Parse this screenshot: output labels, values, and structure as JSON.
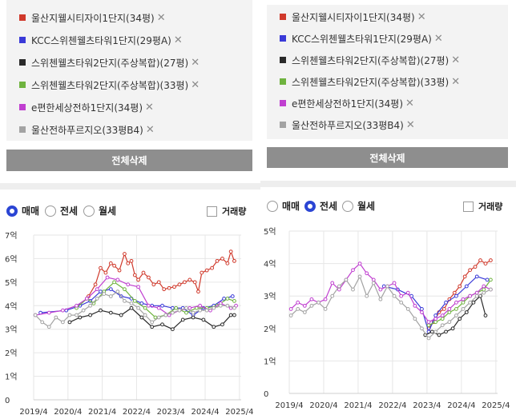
{
  "legend": [
    {
      "label": "울산지웰시티자이1단지(34평)",
      "color": "#d0392b"
    },
    {
      "label": "KCC스위첸웰츠타워1단지(29평A)",
      "color": "#3a3ad8"
    },
    {
      "label": "스위첸웰츠타워2단지(주상복합)(27평)",
      "color": "#2a2a2a"
    },
    {
      "label": "스위첸웰츠타워2단지(주상복합)(33평)",
      "color": "#6fb33f"
    },
    {
      "label": "e편한세상전하1단지(34평)",
      "color": "#c03fd0"
    },
    {
      "label": "울산전하푸르지오(33평B4)",
      "color": "#a3a3a3"
    }
  ],
  "remove_glyph": "✕",
  "delete_all_label": "전체삭제",
  "options": [
    "매매",
    "전세",
    "월세"
  ],
  "checkbox_label": "거래량",
  "panels": [
    {
      "selected_option": 0
    },
    {
      "selected_option": 1
    }
  ],
  "chart_data": [
    {
      "type": "line",
      "y_unit": "억",
      "yticks": [
        "0",
        "1억",
        "2억",
        "3억",
        "4억",
        "5억",
        "6억",
        "7억"
      ],
      "ylim": [
        0,
        7
      ],
      "xticks": [
        "2019/4",
        "2020/4",
        "2021/4",
        "2022/4",
        "2023/4",
        "2024/4",
        "2025/4"
      ],
      "xlim": [
        2019.25,
        2025.3
      ],
      "series": [
        {
          "name": "울산지웰시티자이1단지(34평)",
          "color": "#d0392b",
          "x": [
            2020.85,
            2021.05,
            2021.2,
            2021.35,
            2021.5,
            2021.6,
            2021.75,
            2021.9,
            2022.0,
            2022.1,
            2022.2,
            2022.3,
            2022.45,
            2022.6,
            2022.75,
            2022.9,
            2023.05,
            2023.2,
            2023.35,
            2023.5,
            2023.65,
            2023.8,
            2023.95,
            2024.05,
            2024.15,
            2024.3,
            2024.45,
            2024.6,
            2024.75,
            2024.9,
            2025.0,
            2025.1
          ],
          "y": [
            4.4,
            4.9,
            5.6,
            5.4,
            5.8,
            5.7,
            5.5,
            6.2,
            5.8,
            5.9,
            5.3,
            5.1,
            5.4,
            5.2,
            4.9,
            5.0,
            4.7,
            4.75,
            4.8,
            4.9,
            5.0,
            5.1,
            5.0,
            4.6,
            5.4,
            5.5,
            5.6,
            5.9,
            6.0,
            5.8,
            6.3,
            5.9
          ]
        },
        {
          "name": "KCC스위첸웰츠타워1단지(29평A)",
          "color": "#3a3ad8",
          "x": [
            2019.45,
            2020.2,
            2020.6,
            2020.9,
            2021.2,
            2021.5,
            2021.8,
            2022.1,
            2022.4,
            2022.7,
            2023.0,
            2023.3,
            2023.6,
            2023.9,
            2024.2,
            2024.5,
            2024.8,
            2025.05
          ],
          "y": [
            3.7,
            3.8,
            4.0,
            4.2,
            4.6,
            4.7,
            4.4,
            4.3,
            4.1,
            4.0,
            4.0,
            3.9,
            3.9,
            3.6,
            3.9,
            4.0,
            4.3,
            4.4
          ]
        },
        {
          "name": "스위첸웰츠타워2단지(주상복합)(27평)",
          "color": "#2a2a2a",
          "x": [
            2020.3,
            2020.6,
            2020.9,
            2021.2,
            2021.5,
            2021.8,
            2022.1,
            2022.4,
            2022.7,
            2023.0,
            2023.3,
            2023.6,
            2023.9,
            2024.2,
            2024.5,
            2024.75,
            2025.0,
            2025.1
          ],
          "y": [
            3.3,
            3.5,
            3.6,
            3.8,
            3.7,
            3.6,
            3.9,
            3.5,
            3.1,
            3.2,
            3.0,
            3.4,
            3.5,
            3.4,
            3.1,
            3.2,
            3.6,
            3.6
          ]
        },
        {
          "name": "스위첸웰츠타워2단지(주상복합)(33평)",
          "color": "#6fb33f",
          "x": [
            2020.5,
            2020.8,
            2021.0,
            2021.3,
            2021.6,
            2021.9,
            2022.2,
            2022.5,
            2022.8,
            2023.1,
            2023.4,
            2023.7,
            2024.0,
            2024.3,
            2024.6,
            2024.9,
            2025.1
          ],
          "y": [
            3.9,
            4.3,
            4.1,
            4.6,
            5.0,
            4.7,
            4.2,
            3.9,
            3.5,
            3.6,
            3.9,
            3.7,
            3.9,
            3.9,
            4.0,
            4.3,
            4.2
          ]
        },
        {
          "name": "e편한세상전하1단지(34평)",
          "color": "#c03fd0",
          "x": [
            2019.3,
            2019.7,
            2020.1,
            2020.5,
            2020.8,
            2021.1,
            2021.4,
            2021.7,
            2022.0,
            2022.3,
            2022.6,
            2022.9,
            2023.2,
            2023.5,
            2023.8,
            2024.1,
            2024.4,
            2024.7,
            2025.0,
            2025.15
          ],
          "y": [
            3.6,
            3.7,
            3.8,
            4.0,
            4.3,
            4.7,
            5.2,
            5.1,
            4.9,
            4.8,
            4.0,
            3.9,
            3.6,
            3.8,
            3.9,
            4.0,
            3.8,
            4.1,
            3.9,
            4.0
          ]
        },
        {
          "name": "울산전하푸르지오(33평B4)",
          "color": "#a3a3a3",
          "x": [
            2019.3,
            2019.5,
            2019.7,
            2019.9,
            2020.1,
            2020.3,
            2020.5,
            2020.7,
            2020.9,
            2021.1,
            2021.3,
            2021.5,
            2021.7,
            2021.9,
            2022.1,
            2022.3,
            2022.5,
            2022.7,
            2022.9,
            2023.1,
            2023.3,
            2023.5,
            2023.7,
            2023.9,
            2024.1,
            2024.3,
            2024.5,
            2024.7,
            2024.9,
            2025.1
          ],
          "y": [
            3.6,
            3.3,
            3.1,
            3.5,
            3.3,
            3.6,
            3.6,
            3.8,
            4.0,
            4.3,
            4.5,
            4.4,
            4.6,
            4.2,
            4.1,
            3.9,
            3.6,
            3.3,
            3.5,
            3.6,
            3.7,
            3.8,
            3.9,
            3.7,
            3.8,
            3.8,
            3.9,
            4.0,
            4.0,
            3.9
          ]
        }
      ]
    },
    {
      "type": "line",
      "y_unit": "억",
      "yticks": [
        "0",
        "1억",
        "2억",
        "3억",
        "4억",
        "5억"
      ],
      "ylim": [
        0,
        5
      ],
      "xticks": [
        "2019/4",
        "2020/4",
        "2021/4",
        "2022/4",
        "2023/4",
        "2024/4",
        "2025/4"
      ],
      "xlim": [
        2019.25,
        2025.3
      ],
      "series": [
        {
          "name": "울산지웰시티자이1단지(34평)",
          "color": "#d0392b",
          "x": [
            2023.3,
            2023.45,
            2023.6,
            2023.75,
            2023.9,
            2024.05,
            2024.2,
            2024.35,
            2024.5,
            2024.65,
            2024.8,
            2024.95,
            2025.1
          ],
          "y": [
            2.0,
            2.2,
            2.5,
            2.6,
            2.9,
            3.1,
            3.3,
            3.6,
            3.8,
            3.9,
            4.1,
            4.0,
            4.1
          ]
        },
        {
          "name": "KCC스위첸웰츠타워1단지(29평A)",
          "color": "#3a3ad8",
          "x": [
            2022.0,
            2022.4,
            2022.8,
            2023.1,
            2023.3,
            2023.5,
            2023.8,
            2024.1,
            2024.4,
            2024.7,
            2025.0
          ],
          "y": [
            3.3,
            3.2,
            3.0,
            2.6,
            1.9,
            2.4,
            2.8,
            3.0,
            3.3,
            3.6,
            3.5
          ]
        },
        {
          "name": "스위첸웰츠타워2단지(주상복합)(27평)",
          "color": "#2a2a2a",
          "x": [
            2023.2,
            2023.4,
            2023.6,
            2023.8,
            2024.0,
            2024.2,
            2024.4,
            2024.6,
            2024.8,
            2024.95
          ],
          "y": [
            1.8,
            1.9,
            1.8,
            1.9,
            2.0,
            2.3,
            2.5,
            2.8,
            3.0,
            2.4
          ]
        },
        {
          "name": "스위첸웰츠타워2단지(주상복합)(33평)",
          "color": "#6fb33f",
          "x": [
            2023.3,
            2023.5,
            2023.7,
            2023.9,
            2024.1,
            2024.3,
            2024.5,
            2024.7,
            2024.9,
            2025.1
          ],
          "y": [
            2.1,
            2.2,
            2.3,
            2.5,
            2.6,
            2.8,
            3.0,
            3.1,
            3.2,
            3.5
          ]
        },
        {
          "name": "e편한세상전하1단지(34평)",
          "color": "#c03fd0",
          "x": [
            2019.3,
            2019.5,
            2019.7,
            2019.9,
            2020.1,
            2020.3,
            2020.5,
            2020.7,
            2020.9,
            2021.1,
            2021.3,
            2021.5,
            2021.7,
            2021.9,
            2022.1,
            2022.3,
            2022.5,
            2022.7,
            2022.9,
            2023.1,
            2023.3,
            2023.5,
            2023.7,
            2023.9,
            2024.1,
            2024.3,
            2024.5,
            2024.7,
            2024.9,
            2025.1
          ],
          "y": [
            2.6,
            2.8,
            2.7,
            2.9,
            2.8,
            2.9,
            3.4,
            3.2,
            3.5,
            3.8,
            4.0,
            3.7,
            3.5,
            3.2,
            3.3,
            3.4,
            3.0,
            3.1,
            2.7,
            2.5,
            2.2,
            2.3,
            2.4,
            2.6,
            2.8,
            2.9,
            3.0,
            3.1,
            3.3,
            3.2
          ]
        },
        {
          "name": "울산전하푸르지오(33평B4)",
          "color": "#a3a3a3",
          "x": [
            2019.3,
            2019.5,
            2019.7,
            2019.9,
            2020.1,
            2020.3,
            2020.5,
            2020.7,
            2020.9,
            2021.1,
            2021.3,
            2021.5,
            2021.7,
            2021.9,
            2022.1,
            2022.3,
            2022.5,
            2022.7,
            2022.9,
            2023.1,
            2023.3,
            2023.5,
            2023.7,
            2023.9,
            2024.1,
            2024.3,
            2024.5,
            2024.7,
            2024.9,
            2025.1
          ],
          "y": [
            2.4,
            2.6,
            2.5,
            2.7,
            2.8,
            2.6,
            3.0,
            3.3,
            3.5,
            3.2,
            3.6,
            3.0,
            3.4,
            2.9,
            3.3,
            3.0,
            2.8,
            2.6,
            2.3,
            2.0,
            1.7,
            1.9,
            2.1,
            2.2,
            2.4,
            2.6,
            2.8,
            3.0,
            3.1,
            3.2
          ]
        }
      ]
    }
  ]
}
